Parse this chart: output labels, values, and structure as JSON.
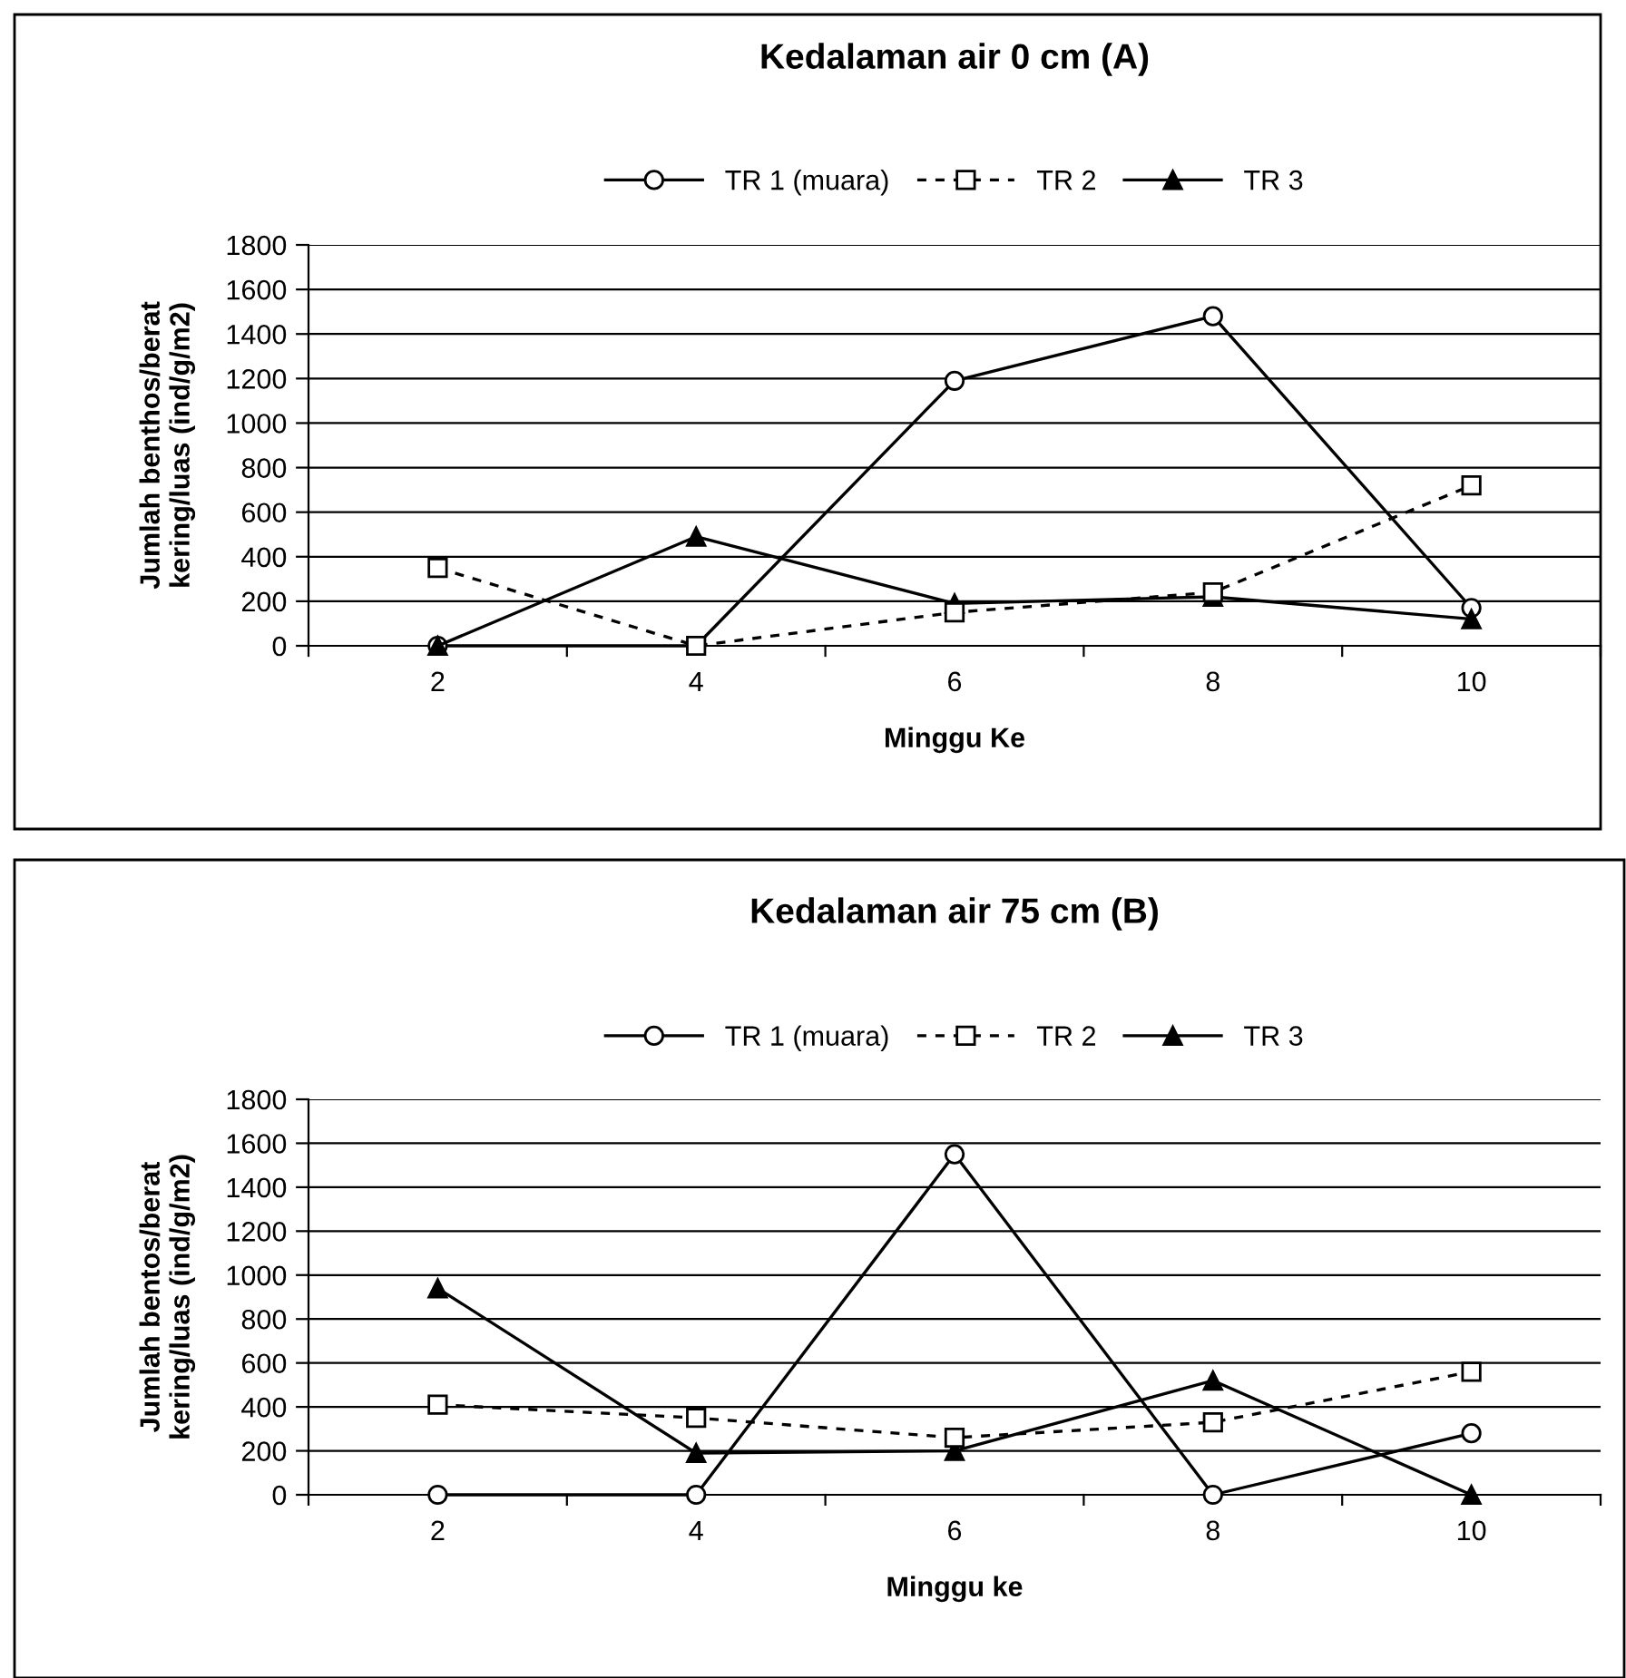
{
  "chart_data": [
    {
      "type": "line",
      "title": "Kedalaman air 0 cm (A)",
      "xlabel": "Minggu Ke",
      "ylabel": "Jumlah benthos/berat\nkering/luas (ind/g/m2)",
      "categories": [
        "2",
        "4",
        "6",
        "8",
        "10"
      ],
      "ylim": [
        0,
        1800
      ],
      "yticks": [
        0,
        200,
        400,
        600,
        800,
        1000,
        1200,
        1400,
        1600,
        1800
      ],
      "grid": "y",
      "legend": "top",
      "series": [
        {
          "name": "TR 1 (muara)",
          "color": "#000000",
          "marker": "circle",
          "line_style": "solid",
          "values": [
            0,
            0,
            1190,
            1480,
            170
          ]
        },
        {
          "name": "TR 2",
          "color": "#000000",
          "marker": "square",
          "line_style": "dashed",
          "values": [
            350,
            0,
            150,
            240,
            720
          ]
        },
        {
          "name": "TR 3",
          "color": "#000000",
          "marker": "triangle",
          "line_style": "solid",
          "values": [
            0,
            490,
            190,
            220,
            120
          ]
        }
      ]
    },
    {
      "type": "line",
      "title": "Kedalaman air 75 cm (B)",
      "xlabel": "Minggu ke",
      "ylabel": "Jumlah bentos/berat\nkering/luas (ind/g/m2)",
      "categories": [
        "2",
        "4",
        "6",
        "8",
        "10"
      ],
      "ylim": [
        0,
        1800
      ],
      "yticks": [
        0,
        200,
        400,
        600,
        800,
        1000,
        1200,
        1400,
        1600,
        1800
      ],
      "grid": "y",
      "legend": "top",
      "series": [
        {
          "name": "TR 1 (muara)",
          "color": "#000000",
          "marker": "circle",
          "line_style": "solid",
          "values": [
            0,
            0,
            1550,
            0,
            280
          ]
        },
        {
          "name": "TR 2",
          "color": "#000000",
          "marker": "square",
          "line_style": "dashed",
          "values": [
            410,
            350,
            260,
            330,
            560
          ]
        },
        {
          "name": "TR 3",
          "color": "#000000",
          "marker": "triangle",
          "line_style": "solid",
          "values": [
            940,
            190,
            200,
            520,
            0
          ]
        }
      ]
    }
  ]
}
